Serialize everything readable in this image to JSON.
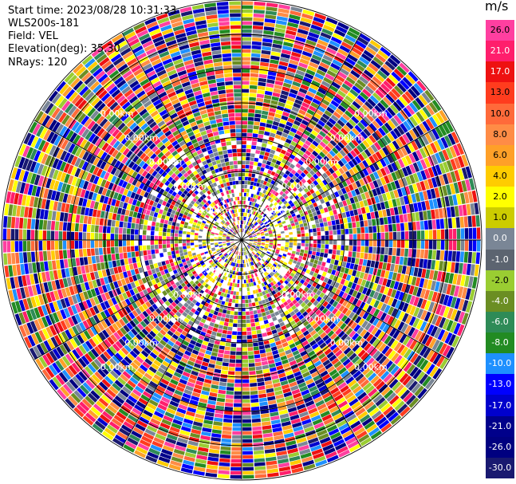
{
  "info": {
    "start_time": "Start time: 2023/08/28 10:31:33",
    "instrument": "WLS200s-181",
    "field": "Field: VEL",
    "elevation": "Elevation(deg): 35.30",
    "nrays": "NRays: 120"
  },
  "chart_data": {
    "type": "heatmap",
    "projection": "polar (PPI scan)",
    "field": "VEL",
    "units": "m/s",
    "elevation_deg": 35.3,
    "n_rays": 120,
    "range_ring_label": "0.00km",
    "range_ring_count": 7,
    "colorbar": {
      "unit_label": "m/s",
      "levels": [
        {
          "label": "26.0",
          "color": "#ff3fa0"
        },
        {
          "label": "21.0",
          "color": "#ff1e6c"
        },
        {
          "label": "17.0",
          "color": "#ee1111"
        },
        {
          "label": "13.0",
          "color": "#ff3c1e"
        },
        {
          "label": "10.0",
          "color": "#ff6a3a"
        },
        {
          "label": "8.0",
          "color": "#ff8c46"
        },
        {
          "label": "6.0",
          "color": "#ffa028"
        },
        {
          "label": "4.0",
          "color": "#ffcc00"
        },
        {
          "label": "2.0",
          "color": "#ffff00"
        },
        {
          "label": "1.0",
          "color": "#cccc00"
        },
        {
          "label": "0.0",
          "color": "#7a8696"
        },
        {
          "label": "-1.0",
          "color": "#5c6470"
        },
        {
          "label": "-2.0",
          "color": "#9acd32"
        },
        {
          "label": "-4.0",
          "color": "#6b8e23"
        },
        {
          "label": "-6.0",
          "color": "#2e8b57"
        },
        {
          "label": "-8.0",
          "color": "#228b22"
        },
        {
          "label": "-10.0",
          "color": "#1e90ff"
        },
        {
          "label": "-13.0",
          "color": "#0000ff"
        },
        {
          "label": "-17.0",
          "color": "#0000cd"
        },
        {
          "label": "-21.0",
          "color": "#00008b"
        },
        {
          "label": "-26.0",
          "color": "#000080"
        },
        {
          "label": "-30.0",
          "color": "#191970"
        }
      ]
    }
  }
}
